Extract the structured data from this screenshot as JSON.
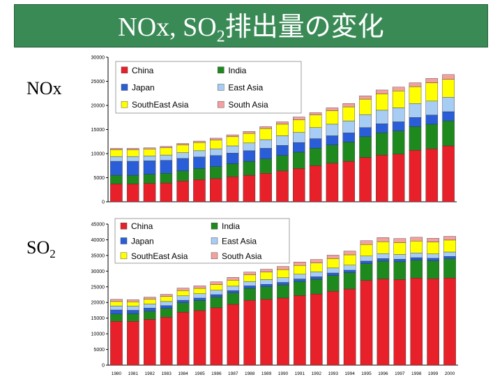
{
  "title": {
    "prefix": "NOx, SO",
    "sub": "2",
    "suffix": "排出量の変化"
  },
  "row_labels": {
    "nox": "NOx",
    "so2_main": "SO",
    "so2_sub": "2"
  },
  "colors": {
    "China": "#e8202a",
    "India": "#1e8a1e",
    "Japan": "#2a5ed8",
    "East Asia": "#a8cdf4",
    "SouthEast Asia": "#ffff00",
    "South Asia": "#f4a0a0"
  },
  "chart_data": [
    {
      "type": "bar",
      "stacked": true,
      "title": "NOx",
      "x": [
        1980,
        1981,
        1982,
        1983,
        1984,
        1985,
        1986,
        1987,
        1988,
        1989,
        1990,
        1991,
        1992,
        1993,
        1994,
        1995,
        1996,
        1997,
        1998,
        1999,
        2000
      ],
      "ylim": [
        0,
        30000
      ],
      "yticks": [
        0,
        5000,
        10000,
        15000,
        20000,
        25000,
        30000
      ],
      "grid": false,
      "legend_position": "top-left",
      "series": [
        {
          "name": "China",
          "values": [
            3700,
            3700,
            3800,
            3900,
            4300,
            4600,
            4800,
            5200,
            5500,
            5900,
            6400,
            6900,
            7500,
            8000,
            8400,
            9200,
            9700,
            9900,
            10700,
            11000,
            11600
          ]
        },
        {
          "name": "India",
          "values": [
            1800,
            1800,
            1900,
            2000,
            2100,
            2300,
            2500,
            2700,
            2900,
            3000,
            3200,
            3400,
            3600,
            3800,
            4000,
            4300,
            4600,
            4800,
            4900,
            5100,
            5200
          ]
        },
        {
          "name": "Japan",
          "values": [
            2900,
            2900,
            2800,
            2700,
            2600,
            2400,
            2300,
            2200,
            2200,
            2200,
            2100,
            2000,
            2000,
            1900,
            1900,
            1900,
            1900,
            1900,
            1900,
            1900,
            1900
          ]
        },
        {
          "name": "East Asia",
          "values": [
            1000,
            1000,
            1000,
            1100,
            1200,
            1300,
            1400,
            1500,
            1600,
            1800,
            2000,
            2100,
            2300,
            2400,
            2500,
            2700,
            2800,
            2900,
            2900,
            2900,
            3000
          ]
        },
        {
          "name": "SouthEast Asia",
          "values": [
            1400,
            1400,
            1400,
            1500,
            1600,
            1700,
            1800,
            1900,
            2000,
            2300,
            2400,
            2600,
            2600,
            2800,
            2900,
            3200,
            3400,
            3500,
            3500,
            3800,
            3700
          ]
        },
        {
          "name": "South Asia",
          "values": [
            300,
            300,
            300,
            300,
            300,
            300,
            400,
            400,
            400,
            400,
            500,
            600,
            500,
            600,
            700,
            700,
            800,
            800,
            800,
            900,
            1000
          ]
        }
      ]
    },
    {
      "type": "bar",
      "stacked": true,
      "title": "SO2",
      "x": [
        1980,
        1981,
        1982,
        1983,
        1984,
        1985,
        1986,
        1987,
        1988,
        1989,
        1990,
        1991,
        1992,
        1993,
        1994,
        1995,
        1996,
        1997,
        1998,
        1999,
        2000
      ],
      "xlabels": [
        "1980",
        "1981",
        "1982",
        "1983",
        "1984",
        "1985",
        "1986",
        "1987",
        "1988",
        "1989",
        "1990",
        "1991",
        "1992",
        "1993",
        "1994",
        "1995",
        "1996",
        "1997",
        "1998",
        "1999",
        "2000"
      ],
      "ylim": [
        0,
        45000
      ],
      "yticks": [
        0,
        5000,
        10000,
        15000,
        20000,
        25000,
        30000,
        35000,
        40000,
        45000
      ],
      "grid": false,
      "legend_position": "top-left",
      "series": [
        {
          "name": "China",
          "values": [
            14000,
            14000,
            14600,
            15300,
            16900,
            17400,
            18300,
            19400,
            20700,
            21000,
            21400,
            22200,
            22700,
            23600,
            24300,
            27000,
            27500,
            27300,
            27800,
            27600,
            27800
          ]
        },
        {
          "name": "India",
          "values": [
            2300,
            2400,
            2600,
            2800,
            3000,
            3200,
            3400,
            3600,
            3800,
            4000,
            4200,
            4500,
            4700,
            5000,
            5200,
            5400,
            5700,
            5700,
            5700,
            5700,
            6100
          ]
        },
        {
          "name": "Japan",
          "values": [
            1300,
            1100,
            1000,
            900,
            800,
            800,
            800,
            800,
            800,
            800,
            800,
            800,
            800,
            800,
            800,
            800,
            800,
            800,
            800,
            800,
            800
          ]
        },
        {
          "name": "East Asia",
          "values": [
            1300,
            1300,
            1300,
            1300,
            1400,
            1400,
            1400,
            1400,
            1400,
            1500,
            1500,
            1500,
            1600,
            1600,
            1600,
            1600,
            1600,
            1500,
            1500,
            1400,
            1400
          ]
        },
        {
          "name": "SouthEast Asia",
          "values": [
            1400,
            1400,
            1500,
            1600,
            1700,
            1700,
            1800,
            1900,
            2100,
            2400,
            2600,
            2800,
            2800,
            3000,
            3300,
            3700,
            3800,
            3800,
            3800,
            3800,
            3800
          ]
        },
        {
          "name": "South Asia",
          "values": [
            700,
            700,
            700,
            700,
            800,
            800,
            900,
            900,
            900,
            900,
            1000,
            1100,
            1100,
            1100,
            1200,
            1200,
            1300,
            1300,
            1200,
            1200,
            1200
          ]
        }
      ]
    }
  ]
}
